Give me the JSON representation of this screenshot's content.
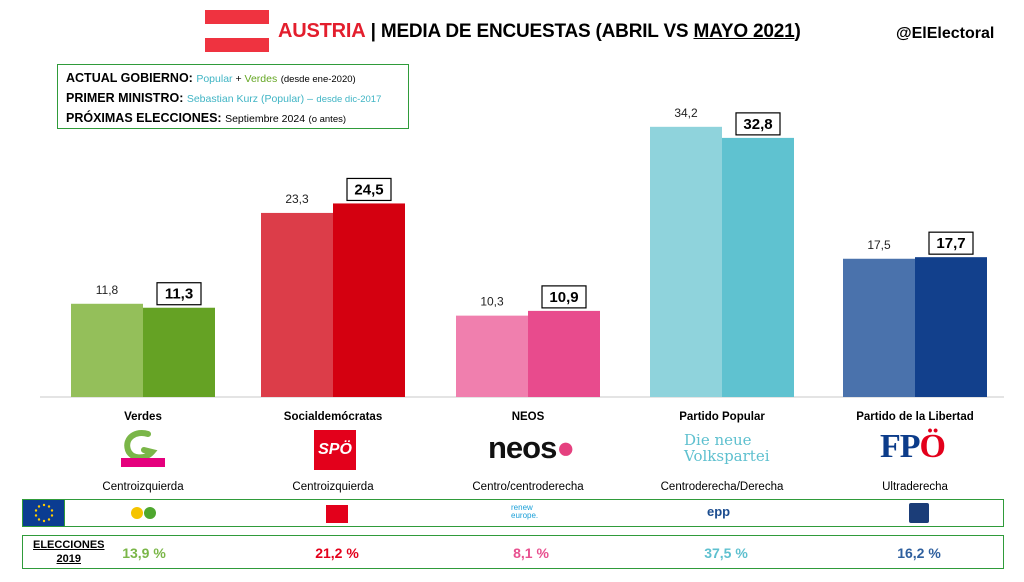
{
  "header": {
    "country": "AUSTRIA",
    "separator": "|",
    "title_main": "MEDIA DE ENCUESTAS (ABRIL VS ",
    "title_month": "MAYO 2021",
    "title_close": ")",
    "handle": "@ElElectoral"
  },
  "info": {
    "gov_label": "ACTUAL GOBIERNO:",
    "gov_party1": "Popular",
    "gov_plus": " + ",
    "gov_party2": "Verdes",
    "gov_since": "(desde ene-2020)",
    "pm_label": "PRIMER MINISTRO:",
    "pm_value": "Sebastian Kurz (Popular) –",
    "pm_since": "desde dic-2017",
    "next_label": "PRÓXIMAS ELECCIONES:",
    "next_value": "Septiembre 2024",
    "next_note": "(o antes)"
  },
  "chart_data": {
    "type": "bar",
    "categories": [
      "Verdes",
      "Socialdemócratas",
      "NEOS",
      "Partido Popular",
      "Partido de la Libertad"
    ],
    "ideology": [
      "Centroizquierda",
      "Centroizquierda",
      "Centro/centroderecha",
      "Centroderecha/Derecha",
      "Ultraderecha"
    ],
    "series": [
      {
        "values": [
          11.8,
          23.3,
          10.3,
          34.2,
          17.5
        ],
        "labels": [
          "11,8",
          "23,3",
          "10,3",
          "34,2",
          "17,5"
        ]
      },
      {
        "values": [
          11.3,
          24.5,
          10.9,
          32.8,
          17.7
        ],
        "labels": [
          "11,3",
          "24,5",
          "10,9",
          "32,8",
          "17,7"
        ]
      }
    ],
    "colors_prev": [
      "#94bf5a",
      "#dc3d49",
      "#f07fae",
      "#8fd3dc",
      "#4a72ac"
    ],
    "colors_curr": [
      "#65a224",
      "#d40010",
      "#e84b8d",
      "#5fc2d0",
      "#12408c"
    ],
    "ylim": [
      0,
      36
    ]
  },
  "logos": {
    "spo": "SPÖ",
    "neos_main": "neos",
    "ovp_line1": "Die neue",
    "ovp_line2": "Volkspartei",
    "fpo_main": "FP",
    "fpo_o": "Ö"
  },
  "eu_groups": [
    "renew europe.",
    "epp"
  ],
  "elections": {
    "label_line1": "ELECCIONES",
    "label_line2": "2019",
    "values": [
      "13,9 %",
      "21,2 %",
      "8,1 %",
      "37,5 %",
      "16,2 %"
    ],
    "colors": [
      "#7ab648",
      "#e3001b",
      "#e8508f",
      "#5ec0cf",
      "#2e5f9e"
    ]
  }
}
